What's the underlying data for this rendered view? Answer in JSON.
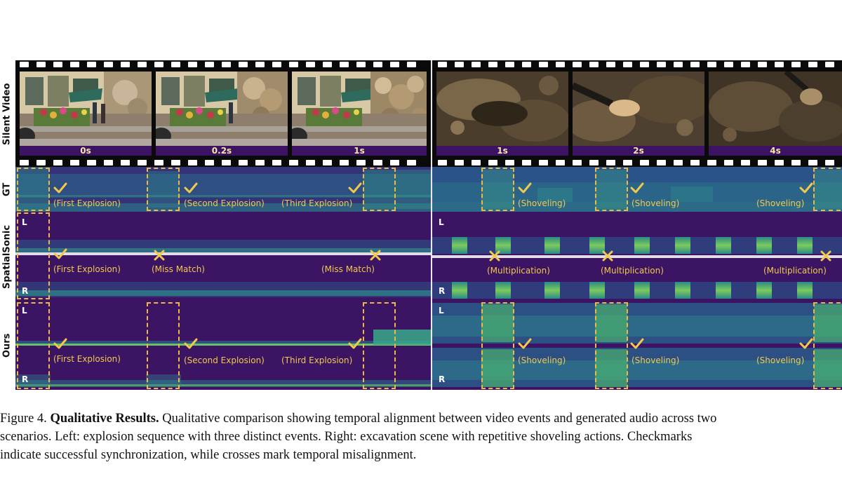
{
  "rows": {
    "silent_video": "Silent Video",
    "gt": "GT",
    "spatialsonic": "SpatialSonic",
    "ours": "Ours"
  },
  "timestamps": {
    "left": [
      "0s",
      "0.2s",
      "1s"
    ],
    "right": [
      "1s",
      "2s",
      "4s"
    ]
  },
  "channels": {
    "left": "L",
    "right": "R"
  },
  "annotations": {
    "gt_left": [
      "(First Explosion)",
      "(Second Explosion)",
      "(Third Explosion)"
    ],
    "gt_right": [
      "(Shoveling)",
      "(Shoveling)",
      "(Shoveling)"
    ],
    "ss_left": [
      "(First Explosion)",
      "(Miss Match)",
      "(Miss Match)"
    ],
    "ss_right": [
      "(Multiplication)",
      "(Multiplication)",
      "(Multiplication)"
    ],
    "ours_left": [
      "(First Explosion)",
      "(Second Explosion)",
      "(Third Explosion)"
    ],
    "ours_right": [
      "(Shoveling)",
      "(Shoveling)",
      "(Shoveling)"
    ]
  },
  "colors": {
    "annotation": "#f2c94c",
    "spectrogram_base": "#3b1464",
    "spectrogram_high": "#58c765",
    "time_bar": "#3c1262"
  },
  "caption": {
    "label": "Figure 4.",
    "title": "Qualitative Results.",
    "line1": "Qualitative comparison showing temporal alignment between video events and generated audio across two",
    "line2": "scenarios.  Left:  explosion sequence with three distinct events.  Right:  excavation scene with repetitive shoveling actions.  Checkmarks",
    "line3": "indicate successful synchronization, while crosses mark temporal misalignment."
  }
}
